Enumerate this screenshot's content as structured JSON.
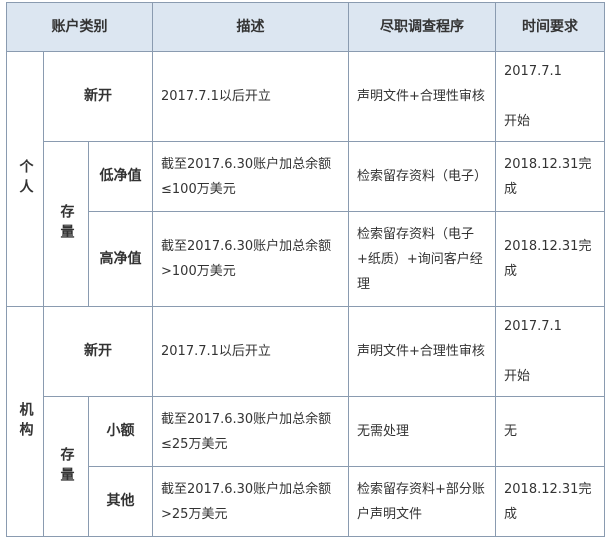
{
  "header": {
    "category": "账户类别",
    "description": "描述",
    "procedure": "尽职调查程序",
    "deadline": "时间要求"
  },
  "groups": [
    {
      "name": "个人",
      "new": {
        "label": "新开",
        "description": "2017.7.1以后开立",
        "procedure": "声明文件+合理性审核",
        "deadline": "2017.7.1\n\n开始"
      },
      "stock": {
        "label": "存量",
        "rows": [
          {
            "label": "低净值",
            "description": "截至2017.6.30账户加总余额≤100万美元",
            "procedure": "检索留存资料（电子）",
            "deadline": "2018.12.31完成"
          },
          {
            "label": "高净值",
            "description": "截至2017.6.30账户加总余额>100万美元",
            "procedure": "检索留存资料（电子+纸质）+询问客户经理",
            "deadline": "2018.12.31完成"
          }
        ]
      }
    },
    {
      "name": "机构",
      "new": {
        "label": "新开",
        "description": "2017.7.1以后开立",
        "procedure": "声明文件+合理性审核",
        "deadline": "2017.7.1\n\n开始"
      },
      "stock": {
        "label": "存量",
        "rows": [
          {
            "label": "小额",
            "description": "截至2017.6.30账户加总余额≤25万美元",
            "procedure": "无需处理",
            "deadline": "无"
          },
          {
            "label": "其他",
            "description": "截至2017.6.30账户加总余额>25万美元",
            "procedure": "检索留存资料+部分账户声明文件",
            "deadline": "2018.12.31完成"
          }
        ]
      }
    }
  ]
}
